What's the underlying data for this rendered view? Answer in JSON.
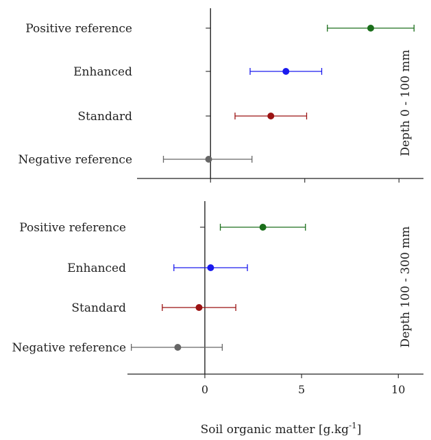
{
  "chart_data": {
    "type": "forest",
    "categories": [
      "Positive reference",
      "Enhanced",
      "Standard",
      "Negative reference"
    ],
    "x_axis": {
      "title": "Soil organic matter [g.kg",
      "title_superscript": "-1",
      "title_suffix": "]",
      "ticks": [
        0,
        5,
        10
      ],
      "tick_labels": [
        "0",
        "5",
        "10"
      ],
      "xlim": [
        -4,
        11.3
      ]
    },
    "panels": [
      {
        "label": "Depth 0 - 100 mm",
        "xlim": [
          -3.9,
          11.3
        ],
        "series": [
          {
            "category": "Positive reference",
            "value": 8.5,
            "lower": 6.2,
            "upper": 10.8,
            "color": "#1a6e1a"
          },
          {
            "category": "Enhanced",
            "value": 4.0,
            "lower": 2.1,
            "upper": 5.9,
            "color": "#1a1aee"
          },
          {
            "category": "Standard",
            "value": 3.2,
            "lower": 1.3,
            "upper": 5.1,
            "color": "#9b1212"
          },
          {
            "category": "Negative reference",
            "value": -0.1,
            "lower": -2.5,
            "upper": 2.2,
            "color": "#666666"
          }
        ]
      },
      {
        "label": "Depth 100 - 300 mm",
        "xlim": [
          -4.0,
          11.3
        ],
        "series": [
          {
            "category": "Positive reference",
            "value": 3.0,
            "lower": 0.8,
            "upper": 5.2,
            "color": "#1a6e1a"
          },
          {
            "category": "Enhanced",
            "value": 0.3,
            "lower": -1.6,
            "upper": 2.2,
            "color": "#1a1aee"
          },
          {
            "category": "Standard",
            "value": -0.3,
            "lower": -2.2,
            "upper": 1.6,
            "color": "#9b1212"
          },
          {
            "category": "Negative reference",
            "value": -1.4,
            "lower": -3.8,
            "upper": 0.9,
            "color": "#666666"
          }
        ]
      }
    ]
  }
}
